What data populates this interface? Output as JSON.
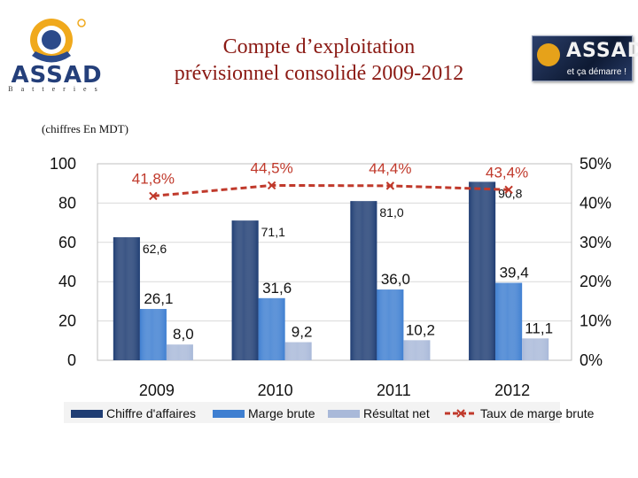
{
  "header": {
    "logo_text": "ASSAD",
    "logo_subtext": "Batteries",
    "title_line1": "Compte d’exploitation",
    "title_line2": "prévisionnel consolidé 2009-2012",
    "right_logo_text": "ASSAD",
    "right_logo_tagline": "et ça démarre !",
    "subtitle": "(chiffres En MDT)"
  },
  "colors": {
    "ca": "#1f3d73",
    "marge": "#3f7fd1",
    "resultat": "#a9b9d9",
    "taux": "#c0392b",
    "title": "#8b1a14"
  },
  "chart_data": {
    "type": "bar",
    "categories": [
      "2009",
      "2010",
      "2011",
      "2012"
    ],
    "series": [
      {
        "name": "Chiffre d'affaires",
        "values": [
          62.6,
          71.1,
          81.0,
          90.8
        ],
        "labels": [
          "62,6",
          "71,1",
          "81,0",
          "90,8"
        ]
      },
      {
        "name": "Marge brute",
        "values": [
          26.1,
          31.6,
          36.0,
          39.4
        ],
        "labels": [
          "26,1",
          "31,6",
          "36,0",
          "39,4"
        ]
      },
      {
        "name": "Résultat net",
        "values": [
          8.0,
          9.2,
          10.2,
          11.1
        ],
        "labels": [
          "8,0",
          "9,2",
          "10,2",
          "11,1"
        ]
      }
    ],
    "line_series": {
      "name": "Taux de marge brute",
      "values": [
        41.8,
        44.5,
        44.4,
        43.4
      ],
      "labels": [
        "41,8%",
        "44,5%",
        "44,4%",
        "43,4%"
      ],
      "axis": "right"
    },
    "left_axis": {
      "min": 0,
      "max": 100,
      "ticks": [
        "0",
        "20",
        "40",
        "60",
        "80",
        "100"
      ]
    },
    "right_axis": {
      "min": 0,
      "max": 50,
      "ticks": [
        "0%",
        "10%",
        "20%",
        "30%",
        "40%",
        "50%"
      ]
    },
    "legend": [
      "Chiffre d'affaires",
      "Marge brute",
      "Résultat net",
      "Taux de marge brute"
    ],
    "legend_position": "bottom",
    "grid": true
  }
}
